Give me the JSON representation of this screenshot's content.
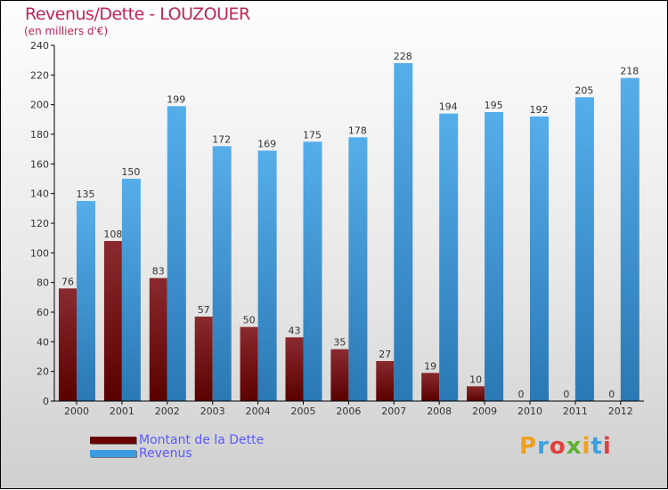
{
  "chart_data": {
    "type": "bar",
    "title": "Revenus/Dette - LOUZOUER",
    "subtitle": "(en milliers d'€)",
    "xlabel": "",
    "ylabel": "",
    "ylim": [
      0,
      240
    ],
    "yticks": [
      0,
      20,
      40,
      60,
      80,
      100,
      120,
      140,
      160,
      180,
      200,
      220,
      240
    ],
    "categories": [
      "2000",
      "2001",
      "2002",
      "2003",
      "2004",
      "2005",
      "2006",
      "2007",
      "2008",
      "2009",
      "2010",
      "2011",
      "2012"
    ],
    "series": [
      {
        "name": "Montant de la Dette",
        "color": "#6b0a0a",
        "values": [
          76,
          108,
          83,
          57,
          50,
          43,
          35,
          27,
          19,
          10,
          0,
          0,
          0
        ]
      },
      {
        "name": "Revenus",
        "color": "#3a9de0",
        "values": [
          135,
          150,
          199,
          172,
          169,
          175,
          178,
          228,
          194,
          195,
          192,
          205,
          218
        ]
      }
    ],
    "legend_position": "bottom-left"
  },
  "logo": "Proxiti"
}
